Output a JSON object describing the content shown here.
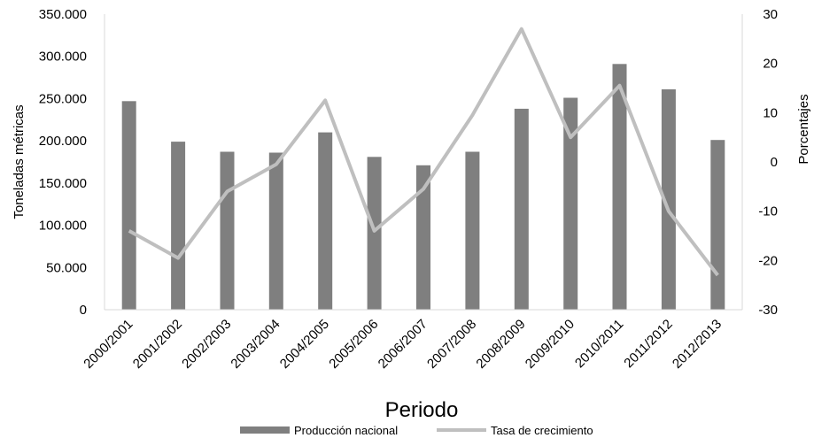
{
  "chart_data": {
    "type": "bar",
    "categories": [
      "2000/2001",
      "2001/2002",
      "2002/2003",
      "2003/2004",
      "2004/2005",
      "2005/2006",
      "2006/2007",
      "2007/2008",
      "2008/2009",
      "2009/2010",
      "2010/2011",
      "2011/2012",
      "2012/2013"
    ],
    "series": [
      {
        "name": "Producción nacional",
        "type": "bar",
        "axis": "left",
        "color": "#7f7f7f",
        "values": [
          247000,
          199000,
          187000,
          186000,
          210000,
          181000,
          171000,
          187000,
          238000,
          251000,
          291000,
          261000,
          201000
        ]
      },
      {
        "name": "Tasa de crecimiento",
        "type": "line",
        "axis": "right",
        "color": "#bfbfbf",
        "values": [
          -14,
          -19.5,
          -6,
          -0.5,
          12.5,
          -14,
          -5.5,
          9.5,
          27,
          5,
          15.5,
          -10,
          -23
        ]
      }
    ],
    "ylim": [
      0,
      350000
    ],
    "yticks": [
      "350.000",
      "300.000",
      "250.000",
      "200.000",
      "150.000",
      "100.000",
      "50.000",
      "0"
    ],
    "ylabel": "Toneladas métricas",
    "y2lim": [
      -30,
      30
    ],
    "y2ticks": [
      "30",
      "20",
      "10",
      "0",
      "-10",
      "-20",
      "-30"
    ],
    "y2label": "Porcentajes",
    "xlabel": "Periodo",
    "legend_position": "bottom",
    "grid": false
  }
}
